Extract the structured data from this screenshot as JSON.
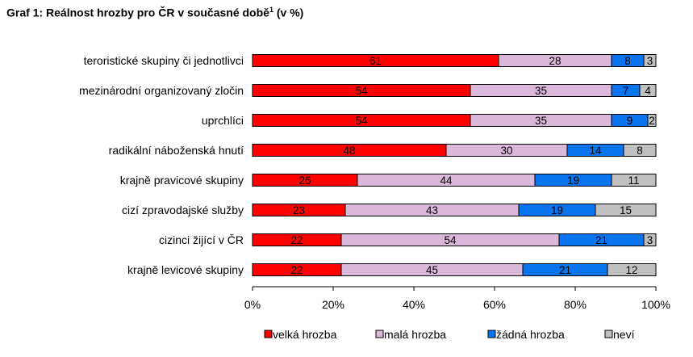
{
  "title": {
    "text": "Graf 1: Reálnost hrozby pro ČR v současné době",
    "footnote": "1",
    "suffix": " (v %)"
  },
  "chart_data": {
    "type": "bar",
    "orientation": "horizontal",
    "stacked": true,
    "percent_stacked": true,
    "title": "Graf 1: Reálnost hrozby pro ČR v současné době (v %)",
    "categories": [
      "teroristické skupiny či jednotlivci",
      "mezinárodní organizovaný zločin",
      "uprchlíci",
      "radikální náboženská hnutí",
      "krajně pravicové skupiny",
      "cizí zpravodajské služby",
      "cizinci žijící v ČR",
      "krajně levicové skupiny"
    ],
    "series": [
      {
        "name": "velká hrozba",
        "color": "#ff0000",
        "values": [
          61,
          54,
          54,
          48,
          26,
          23,
          22,
          22
        ]
      },
      {
        "name": "malá hrozba",
        "color": "#d9b8d9",
        "values": [
          28,
          35,
          35,
          30,
          44,
          43,
          54,
          45
        ]
      },
      {
        "name": "žádná hrozba",
        "color": "#0a73ee",
        "values": [
          8,
          7,
          9,
          14,
          19,
          19,
          21,
          21
        ]
      },
      {
        "name": "neví",
        "color": "#c0c0c0",
        "values": [
          3,
          4,
          2,
          8,
          11,
          15,
          3,
          12
        ]
      }
    ],
    "x_ticks": [
      "0%",
      "20%",
      "40%",
      "60%",
      "80%",
      "100%"
    ],
    "xlim": [
      0,
      100
    ],
    "grid": false,
    "legend": "bottom"
  }
}
